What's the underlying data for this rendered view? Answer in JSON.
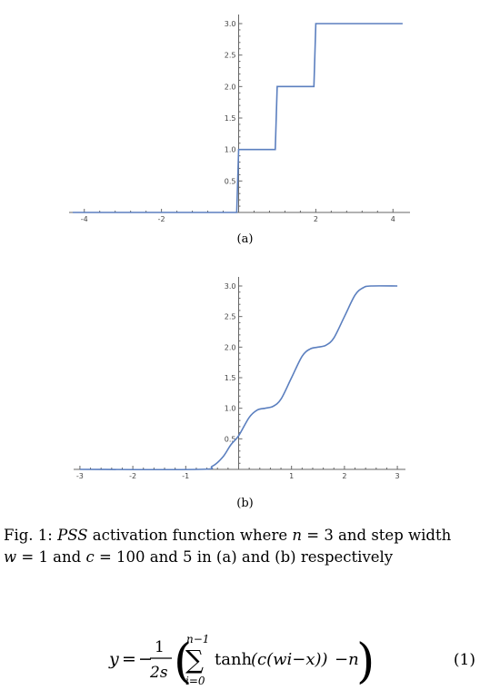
{
  "chart_data": [
    {
      "type": "line",
      "panel_label": "(a)",
      "x": [
        -4.3,
        -0.05,
        0.0,
        0.95,
        1.0,
        1.95,
        2.0,
        4.25
      ],
      "y": [
        0,
        0,
        1,
        1,
        2,
        2,
        3,
        3
      ],
      "xlim": [
        -4.3,
        4.3
      ],
      "ylim": [
        0,
        3.0
      ],
      "xticks": [
        "-4",
        "-2",
        "0",
        "2",
        "4"
      ],
      "yticks": [
        "0.5",
        "1.0",
        "1.5",
        "2.0",
        "2.5",
        "3.0"
      ],
      "line_color": "#5b7fbf"
    },
    {
      "type": "line",
      "panel_label": "(b)",
      "x": [
        -3.0,
        -0.75,
        -0.5,
        -0.3,
        -0.15,
        0.0,
        0.2,
        0.35,
        0.5,
        0.65,
        0.8,
        1.0,
        1.2,
        1.35,
        1.5,
        1.65,
        1.8,
        2.0,
        2.2,
        2.35,
        2.5,
        3.0
      ],
      "y": [
        0.0,
        0.0,
        0.05,
        0.2,
        0.4,
        0.55,
        0.85,
        0.97,
        1.0,
        1.03,
        1.15,
        1.5,
        1.85,
        1.97,
        2.0,
        2.03,
        2.15,
        2.5,
        2.85,
        2.97,
        3.0,
        3.0
      ],
      "xlim": [
        -3.05,
        3.05
      ],
      "ylim": [
        0,
        3.0
      ],
      "xticks": [
        "-3",
        "-2",
        "-1",
        "0",
        "1",
        "2",
        "3"
      ],
      "yticks": [
        "0.5",
        "1.0",
        "1.5",
        "2.0",
        "2.5",
        "3.0"
      ],
      "line_color": "#5b7fbf"
    }
  ],
  "caption": {
    "prefix": "Fig. 1: ",
    "name": "PSS",
    "text1": " activation function where ",
    "var_n": "n",
    "text2": " = 3 and step width",
    "var_w": "w",
    "text3": " = 1 and ",
    "var_c": "c",
    "text4": " = 100 and 5 in (a) and (b) respectively"
  },
  "equation": {
    "lhs": "y",
    "frac_num": "1",
    "frac_den": "2s",
    "sum_upper": "n−1",
    "sum_lower": "i=0",
    "body": "tanh",
    "args": "(c(wi−x))",
    "tail": "−n",
    "number": "(1)"
  }
}
